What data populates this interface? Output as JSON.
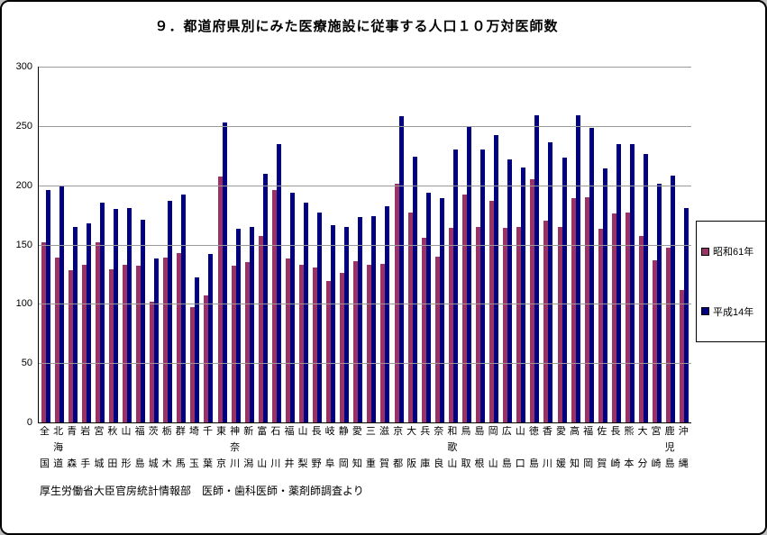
{
  "title": "９．都道府県別にみた医療施設に従事する人口１０万対医師数",
  "footer": "厚生労働省大臣官房統計情報部　医師・歯科医師・薬剤師調査より",
  "chart_data": {
    "type": "bar",
    "title": "９．都道府県別にみた医療施設に従事する人口１０万対医師数",
    "xlabel": "",
    "ylabel": "",
    "ylim": [
      0,
      300
    ],
    "yticks": [
      0,
      50,
      100,
      150,
      200,
      250,
      300
    ],
    "grid": true,
    "legend_position": "right",
    "categories": [
      "全国",
      "北海道",
      "青森",
      "岩手",
      "宮城",
      "秋田",
      "山形",
      "福島",
      "茨城",
      "栃木",
      "群馬",
      "埼玉",
      "千葉",
      "東京",
      "神奈川",
      "新潟",
      "富山",
      "石川",
      "福井",
      "山梨",
      "長野",
      "岐阜",
      "静岡",
      "愛知",
      "三重",
      "滋賀",
      "京都",
      "大阪",
      "兵庫",
      "奈良",
      "和歌山",
      "鳥取",
      "島根",
      "岡山",
      "広島",
      "山口",
      "徳島",
      "香川",
      "愛媛",
      "高知",
      "福岡",
      "佐賀",
      "長崎",
      "熊本",
      "大分",
      "宮崎",
      "鹿児島",
      "沖縄"
    ],
    "series": [
      {
        "name": "昭和61年",
        "color": "#993366",
        "values": [
          152,
          139,
          128,
          133,
          152,
          129,
          133,
          132,
          102,
          139,
          143,
          97,
          107,
          207,
          132,
          135,
          157,
          196,
          138,
          133,
          131,
          119,
          126,
          136,
          133,
          134,
          201,
          177,
          156,
          140,
          164,
          192,
          165,
          187,
          164,
          165,
          205,
          170,
          165,
          189,
          190,
          163,
          176,
          177,
          157,
          137,
          147,
          112
        ]
      },
      {
        "name": "平成14年",
        "color": "#000080",
        "values": [
          196,
          199,
          165,
          168,
          185,
          180,
          181,
          171,
          138,
          187,
          192,
          122,
          142,
          253,
          163,
          165,
          210,
          235,
          194,
          185,
          177,
          166,
          165,
          173,
          174,
          182,
          258,
          224,
          194,
          189,
          230,
          250,
          230,
          242,
          222,
          215,
          259,
          236,
          223,
          259,
          248,
          214,
          235,
          235,
          226,
          201,
          208,
          181
        ]
      }
    ]
  }
}
